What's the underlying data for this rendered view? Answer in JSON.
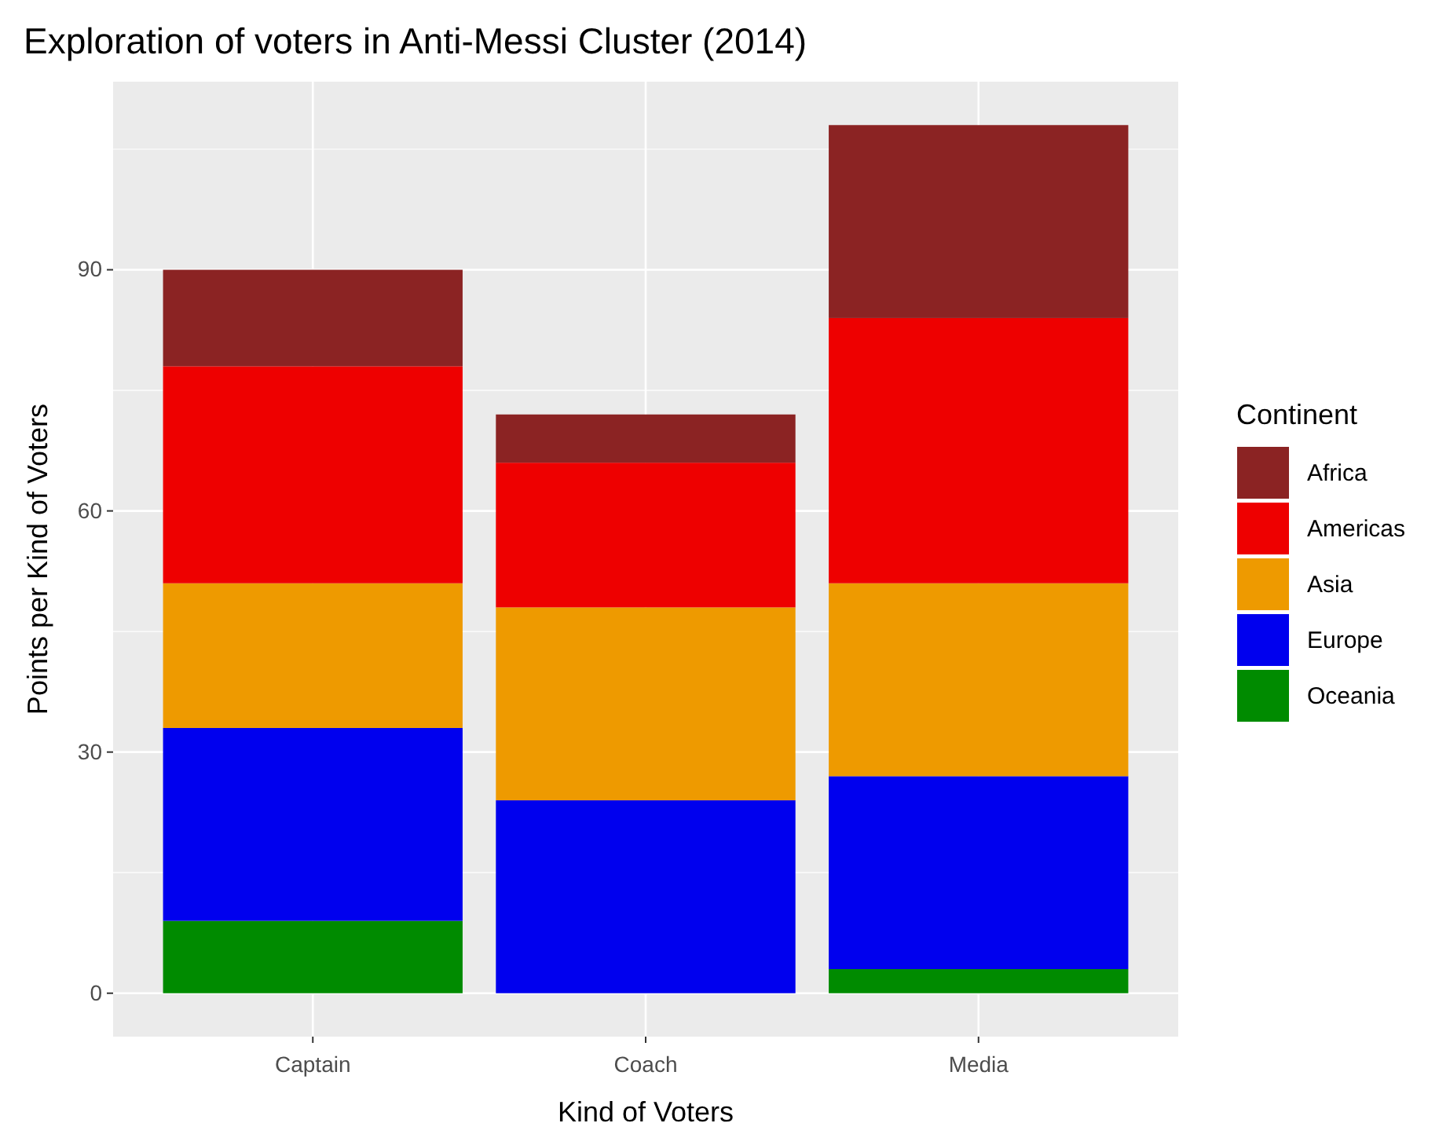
{
  "chart_data": {
    "type": "bar",
    "title": "Exploration of voters in Anti-Messi Cluster (2014)",
    "xlabel": "Kind of Voters",
    "ylabel": "Points per Kind of Voters",
    "legend_title": "Continent",
    "categories": [
      "Captain",
      "Coach",
      "Media"
    ],
    "stacked": true,
    "series": [
      {
        "name": "Oceania",
        "color": "#008b00",
        "values": [
          9,
          0,
          3
        ]
      },
      {
        "name": "Europe",
        "color": "#0000ee",
        "values": [
          24,
          24,
          24
        ]
      },
      {
        "name": "Asia",
        "color": "#ee9a00",
        "values": [
          18,
          24,
          24
        ]
      },
      {
        "name": "Americas",
        "color": "#ee0000",
        "values": [
          27,
          18,
          33
        ]
      },
      {
        "name": "Africa",
        "color": "#8b2323",
        "values": [
          12,
          6,
          24
        ]
      }
    ],
    "ylim": [
      -5.4,
      113.4
    ],
    "yticks": [
      0,
      30,
      60,
      90
    ],
    "grid": true,
    "legend": "right"
  }
}
